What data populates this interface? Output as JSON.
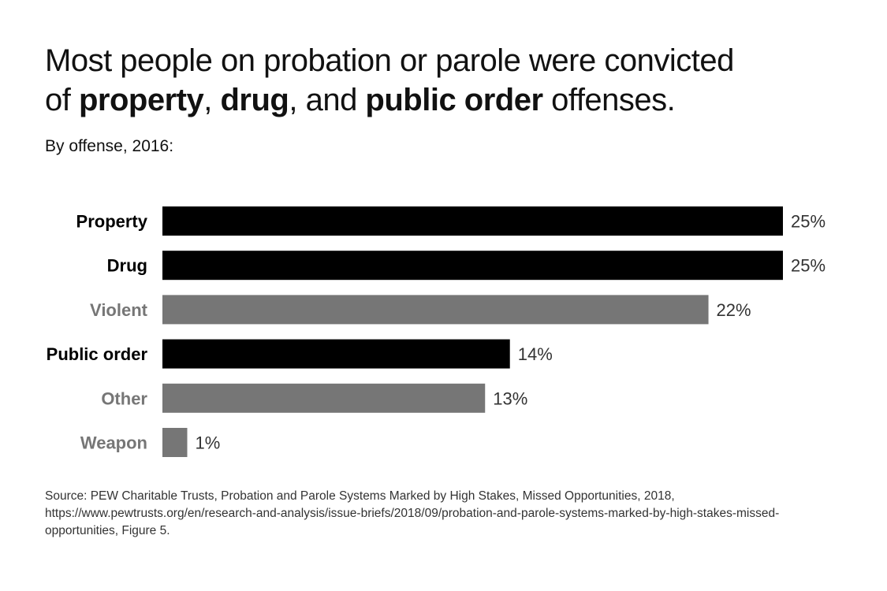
{
  "title": {
    "segments": [
      {
        "text": "Most people on probation or parole were convicted",
        "bold": false,
        "break": true
      },
      {
        "text": "of ",
        "bold": false
      },
      {
        "text": "property",
        "bold": true
      },
      {
        "text": ", ",
        "bold": false
      },
      {
        "text": "drug",
        "bold": true
      },
      {
        "text": ", and ",
        "bold": false
      },
      {
        "text": "public order",
        "bold": true
      },
      {
        "text": " offenses.",
        "bold": false
      }
    ]
  },
  "subtitle": "By offense, 2016:",
  "chart_data": {
    "type": "bar",
    "orientation": "horizontal",
    "categories": [
      "Property",
      "Drug",
      "Violent",
      "Public order",
      "Other",
      "Weapon"
    ],
    "values": [
      25,
      25,
      22,
      14,
      13,
      1
    ],
    "labels": [
      "25%",
      "25%",
      "22%",
      "14%",
      "13%",
      "1%"
    ],
    "highlighted": [
      true,
      true,
      false,
      true,
      false,
      false
    ],
    "colors": {
      "highlight": "#000000",
      "other": "#767676"
    },
    "xlim": [
      0,
      25
    ],
    "grid": false,
    "unit": "%"
  },
  "source": "Source: PEW Charitable Trusts, Probation and Parole Systems Marked by High Stakes, Missed Opportunities, 2018, https://www.pewtrusts.org/en/research-and-analysis/issue-briefs/2018/09/probation-and-parole-systems-marked-by-high-stakes-missed-opportunities, Figure 5."
}
